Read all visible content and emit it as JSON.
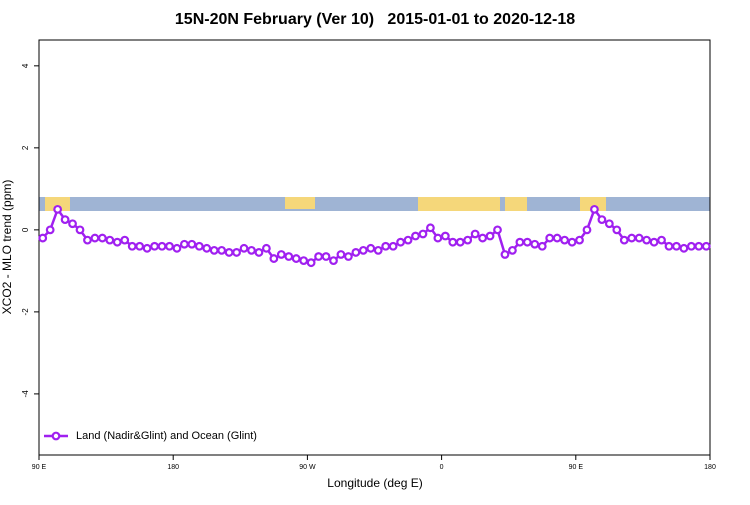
{
  "chart_data": {
    "type": "line",
    "title": "15N-20N February (Ver 10)   2015-01-01 to 2020-12-18",
    "x_label": "Longitude (deg E)",
    "y_label": "XCO2 - MLO trend (ppm)",
    "x": [
      92.5,
      97.5,
      102.5,
      107.5,
      112.5,
      117.5,
      122.5,
      127.5,
      132.5,
      137.5,
      142.5,
      147.5,
      152.5,
      157.5,
      162.5,
      167.5,
      172.5,
      177.5,
      182.5,
      187.5,
      192.5,
      197.5,
      202.5,
      207.5,
      212.5,
      217.5,
      222.5,
      227.5,
      232.5,
      237.5,
      242.5,
      247.5,
      252.5,
      257.5,
      262.5,
      267.5,
      272.5,
      277.5,
      282.5,
      287.5,
      292.5,
      297.5,
      302.5,
      307.5,
      312.5,
      317.5,
      322.5,
      327.5,
      332.5,
      337.5,
      342.5,
      347.5,
      352.5,
      357.5,
      362.5,
      367.5,
      372.5,
      377.5,
      382.5,
      387.5,
      392.5,
      397.5,
      402.5,
      407.5,
      412.5,
      417.5,
      422.5,
      427.5,
      432.5,
      437.5,
      442.5,
      447.5,
      452.5,
      457.5,
      462.5,
      467.5,
      472.5,
      477.5,
      482.5,
      487.5,
      492.5,
      497.5,
      502.5,
      507.5,
      512.5,
      517.5,
      522.5,
      527.5,
      532.5,
      537.5
    ],
    "series": [
      {
        "name": "Land (Nadir&Glint) and Ocean (Glint)",
        "color": "#a020f0",
        "values": [
          -0.2,
          0.0,
          0.5,
          0.25,
          0.15,
          0.0,
          -0.25,
          -0.2,
          -0.2,
          -0.25,
          -0.3,
          -0.25,
          -0.4,
          -0.4,
          -0.45,
          -0.4,
          -0.4,
          -0.4,
          -0.45,
          -0.35,
          -0.35,
          -0.4,
          -0.45,
          -0.5,
          -0.5,
          -0.55,
          -0.55,
          -0.45,
          -0.5,
          -0.55,
          -0.45,
          -0.7,
          -0.6,
          -0.65,
          -0.7,
          -0.75,
          -0.8,
          -0.65,
          -0.65,
          -0.75,
          -0.6,
          -0.65,
          -0.55,
          -0.5,
          -0.45,
          -0.5,
          -0.4,
          -0.4,
          -0.3,
          -0.25,
          -0.15,
          -0.1,
          0.05,
          -0.2,
          -0.15,
          -0.3,
          -0.3,
          -0.25,
          -0.1,
          -0.2,
          -0.15,
          0.0,
          -0.6,
          -0.5,
          -0.3,
          -0.3,
          -0.35,
          -0.4,
          -0.2,
          -0.2,
          -0.25,
          -0.3,
          -0.25,
          0.0,
          0.5,
          0.25,
          0.15,
          0.0,
          -0.25,
          -0.2,
          -0.2,
          -0.25,
          -0.3,
          -0.25,
          -0.4,
          -0.4,
          -0.45,
          -0.4,
          -0.4,
          -0.4
        ]
      }
    ],
    "xlim": [
      90,
      540
    ],
    "xticks": [
      {
        "value": 90,
        "label": "90 E"
      },
      180,
      {
        "value": 270,
        "label": "90 W"
      },
      {
        "value": 360,
        "label": "0"
      },
      {
        "value": 450,
        "label": "90 E"
      },
      {
        "value": 540,
        "label": "180"
      }
    ],
    "ylim": [
      -5.49,
      4.63
    ],
    "yticks": [
      -4,
      -2,
      0,
      2,
      4
    ],
    "legend": "bottomleft"
  }
}
